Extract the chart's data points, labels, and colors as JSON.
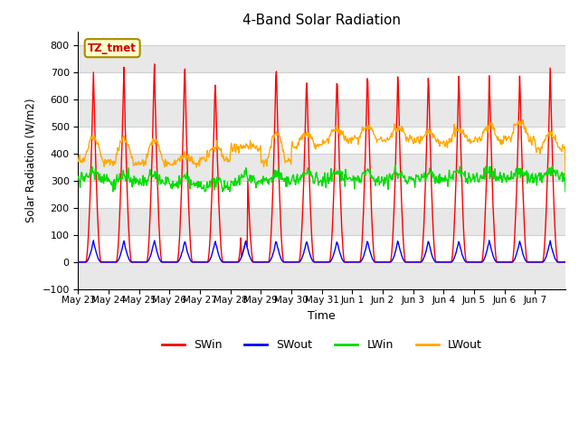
{
  "title": "4-Band Solar Radiation",
  "xlabel": "Time",
  "ylabel": "Solar Radiation (W/m2)",
  "ylim": [
    -100,
    850
  ],
  "xlim": [
    0,
    16
  ],
  "annotation": "TZ_tmet",
  "grid_color": "#d0d0d0",
  "bg_color": "#ffffff",
  "band_color": "#e8e8e8",
  "colors": {
    "SWin": "#ff0000",
    "SWout": "#0000ff",
    "LWin": "#00dd00",
    "LWout": "#ffaa00"
  },
  "x_tick_labels": [
    "May 23",
    "May 24",
    "May 25",
    "May 26",
    "May 27",
    "May 28",
    "May 29",
    "May 30",
    "May 31",
    "Jun 1",
    "Jun 2",
    "Jun 3",
    "Jun 4",
    "Jun 5",
    "Jun 6",
    "Jun 7"
  ],
  "yticks": [
    -100,
    0,
    100,
    200,
    300,
    400,
    500,
    600,
    700,
    800
  ],
  "legend_labels": [
    "SWin",
    "SWout",
    "LWin",
    "LWout"
  ]
}
